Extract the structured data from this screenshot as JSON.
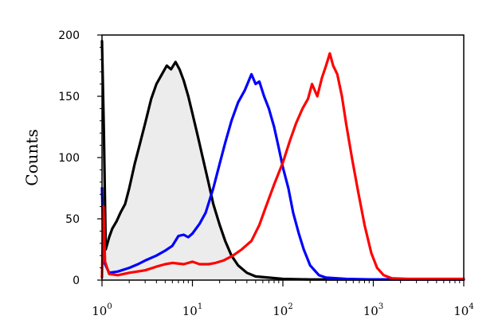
{
  "chart_data": {
    "type": "line",
    "title": "",
    "xlabel": "",
    "ylabel": "Counts",
    "x_scale": "log",
    "xlim": [
      1,
      10000
    ],
    "ylim": [
      0,
      200
    ],
    "y_ticks": [
      "0",
      "50",
      "100",
      "150",
      "200"
    ],
    "x_ticks": [
      {
        "base": "10",
        "exp": "0",
        "value": 1
      },
      {
        "base": "10",
        "exp": "1",
        "value": 10
      },
      {
        "base": "10",
        "exp": "2",
        "value": 100
      },
      {
        "base": "10",
        "exp": "3",
        "value": 1000
      },
      {
        "base": "10",
        "exp": "4",
        "value": 10000
      }
    ],
    "grid": false,
    "series": [
      {
        "color": "#000000",
        "fill": "#ececec",
        "points": [
          [
            1,
            195
          ],
          [
            1.05,
            120
          ],
          [
            1.1,
            25
          ],
          [
            1.2,
            35
          ],
          [
            1.3,
            42
          ],
          [
            1.45,
            48
          ],
          [
            1.6,
            55
          ],
          [
            1.8,
            62
          ],
          [
            2.0,
            75
          ],
          [
            2.3,
            95
          ],
          [
            2.6,
            110
          ],
          [
            3.0,
            128
          ],
          [
            3.5,
            148
          ],
          [
            4.0,
            160
          ],
          [
            4.6,
            168
          ],
          [
            5.2,
            175
          ],
          [
            5.8,
            172
          ],
          [
            6.5,
            178
          ],
          [
            7.2,
            172
          ],
          [
            8.0,
            163
          ],
          [
            9.0,
            150
          ],
          [
            10,
            136
          ],
          [
            11.5,
            117
          ],
          [
            13,
            100
          ],
          [
            15,
            80
          ],
          [
            17,
            62
          ],
          [
            20,
            45
          ],
          [
            23,
            32
          ],
          [
            27,
            20
          ],
          [
            32,
            12
          ],
          [
            40,
            6
          ],
          [
            50,
            3
          ],
          [
            70,
            2
          ],
          [
            100,
            1
          ],
          [
            200,
            0.5
          ],
          [
            1000,
            0.5
          ],
          [
            10000,
            0.5
          ]
        ]
      },
      {
        "color": "#0000ff",
        "points": [
          [
            1,
            75
          ],
          [
            1.05,
            15
          ],
          [
            1.2,
            6
          ],
          [
            1.5,
            7
          ],
          [
            2,
            10
          ],
          [
            2.5,
            13
          ],
          [
            3,
            16
          ],
          [
            4,
            20
          ],
          [
            5,
            24
          ],
          [
            6,
            28
          ],
          [
            7,
            36
          ],
          [
            8,
            37
          ],
          [
            9,
            35
          ],
          [
            10,
            38
          ],
          [
            12,
            46
          ],
          [
            14,
            55
          ],
          [
            17,
            75
          ],
          [
            20,
            95
          ],
          [
            23,
            112
          ],
          [
            27,
            130
          ],
          [
            32,
            145
          ],
          [
            38,
            155
          ],
          [
            45,
            168
          ],
          [
            50,
            160
          ],
          [
            55,
            162
          ],
          [
            62,
            150
          ],
          [
            70,
            140
          ],
          [
            80,
            125
          ],
          [
            90,
            108
          ],
          [
            100,
            92
          ],
          [
            115,
            75
          ],
          [
            130,
            55
          ],
          [
            150,
            38
          ],
          [
            170,
            25
          ],
          [
            200,
            12
          ],
          [
            250,
            4
          ],
          [
            300,
            2
          ],
          [
            500,
            1
          ],
          [
            1000,
            0.5
          ],
          [
            10000,
            0.5
          ]
        ]
      },
      {
        "color": "#ff0000",
        "points": [
          [
            1,
            2
          ],
          [
            1.04,
            60
          ],
          [
            1.08,
            15
          ],
          [
            1.2,
            5
          ],
          [
            1.5,
            4
          ],
          [
            2,
            6
          ],
          [
            3,
            8
          ],
          [
            4,
            11
          ],
          [
            5,
            13
          ],
          [
            6,
            14
          ],
          [
            8,
            13
          ],
          [
            10,
            15
          ],
          [
            12,
            13
          ],
          [
            15,
            13
          ],
          [
            18,
            14
          ],
          [
            22,
            16
          ],
          [
            28,
            20
          ],
          [
            35,
            25
          ],
          [
            45,
            32
          ],
          [
            55,
            45
          ],
          [
            65,
            60
          ],
          [
            80,
            78
          ],
          [
            100,
            96
          ],
          [
            120,
            114
          ],
          [
            140,
            128
          ],
          [
            165,
            140
          ],
          [
            190,
            148
          ],
          [
            210,
            160
          ],
          [
            240,
            150
          ],
          [
            270,
            165
          ],
          [
            300,
            175
          ],
          [
            330,
            185
          ],
          [
            360,
            175
          ],
          [
            400,
            168
          ],
          [
            450,
            150
          ],
          [
            500,
            128
          ],
          [
            580,
            100
          ],
          [
            680,
            72
          ],
          [
            800,
            45
          ],
          [
            950,
            22
          ],
          [
            1100,
            10
          ],
          [
            1300,
            4
          ],
          [
            1600,
            1.5
          ],
          [
            2500,
            1
          ],
          [
            10000,
            1
          ]
        ]
      }
    ]
  }
}
